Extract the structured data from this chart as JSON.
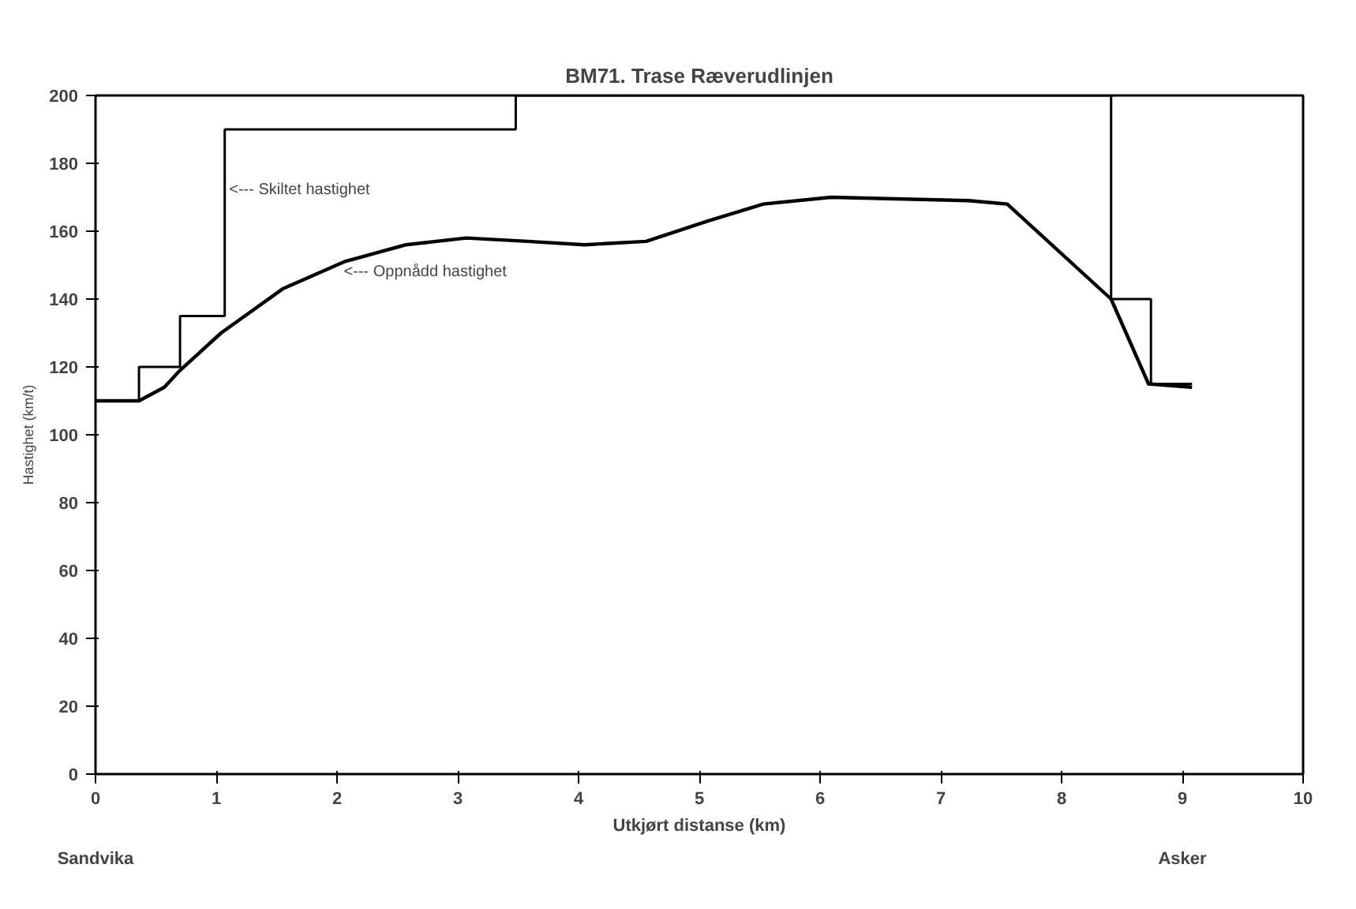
{
  "chart_data": {
    "type": "line",
    "title": "BM71. Trase Ræverudlinjen",
    "xlabel": "Utkjørt distanse (km)",
    "ylabel": "Hastighet (km/t)",
    "xlim": [
      0,
      10
    ],
    "ylim": [
      0,
      200
    ],
    "xticks": [
      0,
      1,
      2,
      3,
      4,
      5,
      6,
      7,
      8,
      9,
      10
    ],
    "yticks": [
      0,
      20,
      40,
      60,
      80,
      100,
      120,
      140,
      160,
      180,
      200
    ],
    "grid": false,
    "series": [
      {
        "type": "step",
        "color": "#000000",
        "x": [
          0,
          0.36,
          0.7,
          1.07,
          3.48,
          8.41,
          8.74,
          9.08
        ],
        "values": [
          110,
          120,
          135,
          190,
          200,
          140,
          115,
          115
        ]
      },
      {
        "color": "#000000",
        "x": [
          0,
          0.36,
          0.57,
          0.7,
          1.04,
          1.55,
          2.06,
          2.57,
          3.07,
          3.58,
          4.05,
          4.56,
          5.07,
          5.53,
          6.09,
          7.23,
          7.55,
          8.41,
          8.72,
          9.08
        ],
        "values": [
          110,
          110,
          114,
          119,
          130,
          143,
          151,
          156,
          158,
          157,
          156,
          157,
          163,
          168,
          170,
          169,
          168,
          140,
          115,
          114
        ]
      }
    ],
    "annotations": [
      {
        "text": "<--- Skiltet hastighet",
        "x": 1.08,
        "y": 172
      },
      {
        "text": "<--- Oppnådd hastighet",
        "x": 2.03,
        "y": 148
      },
      "Sandvika",
      "Asker"
    ]
  }
}
